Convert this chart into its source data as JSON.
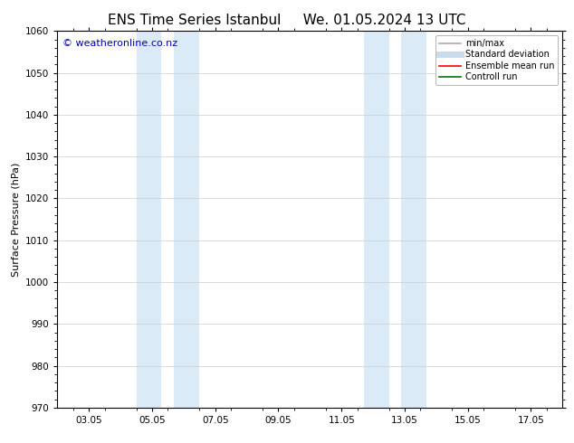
{
  "title_left": "ENS Time Series Istanbul",
  "title_right": "We. 01.05.2024 13 UTC",
  "ylabel": "Surface Pressure (hPa)",
  "ylim": [
    970,
    1060
  ],
  "yticks": [
    970,
    980,
    990,
    1000,
    1010,
    1020,
    1030,
    1040,
    1050,
    1060
  ],
  "xtick_labels": [
    "03.05",
    "05.05",
    "07.05",
    "09.05",
    "11.05",
    "13.05",
    "15.05",
    "17.05"
  ],
  "xtick_positions": [
    2,
    4,
    6,
    8,
    10,
    12,
    14,
    16
  ],
  "xlim": [
    1,
    17
  ],
  "shaded_regions": [
    {
      "x_start": 3.5,
      "x_end": 4.3
    },
    {
      "x_start": 4.7,
      "x_end": 5.5
    },
    {
      "x_start": 10.7,
      "x_end": 11.5
    },
    {
      "x_start": 11.9,
      "x_end": 12.7
    }
  ],
  "shaded_color": "#daeaf7",
  "watermark_text": "© weatheronline.co.nz",
  "watermark_color": "#0000bb",
  "watermark_fontsize": 8,
  "legend_entries": [
    {
      "label": "min/max",
      "color": "#aaaaaa",
      "lw": 1.2
    },
    {
      "label": "Standard deviation",
      "color": "#c8dced",
      "lw": 5
    },
    {
      "label": "Ensemble mean run",
      "color": "#ff0000",
      "lw": 1.2
    },
    {
      "label": "Controll run",
      "color": "#007700",
      "lw": 1.2
    }
  ],
  "bg_color": "#ffffff",
  "grid_color": "#cccccc",
  "title_fontsize": 11,
  "ylabel_fontsize": 8,
  "tick_fontsize": 7.5,
  "legend_fontsize": 7,
  "spine_color": "#000000"
}
